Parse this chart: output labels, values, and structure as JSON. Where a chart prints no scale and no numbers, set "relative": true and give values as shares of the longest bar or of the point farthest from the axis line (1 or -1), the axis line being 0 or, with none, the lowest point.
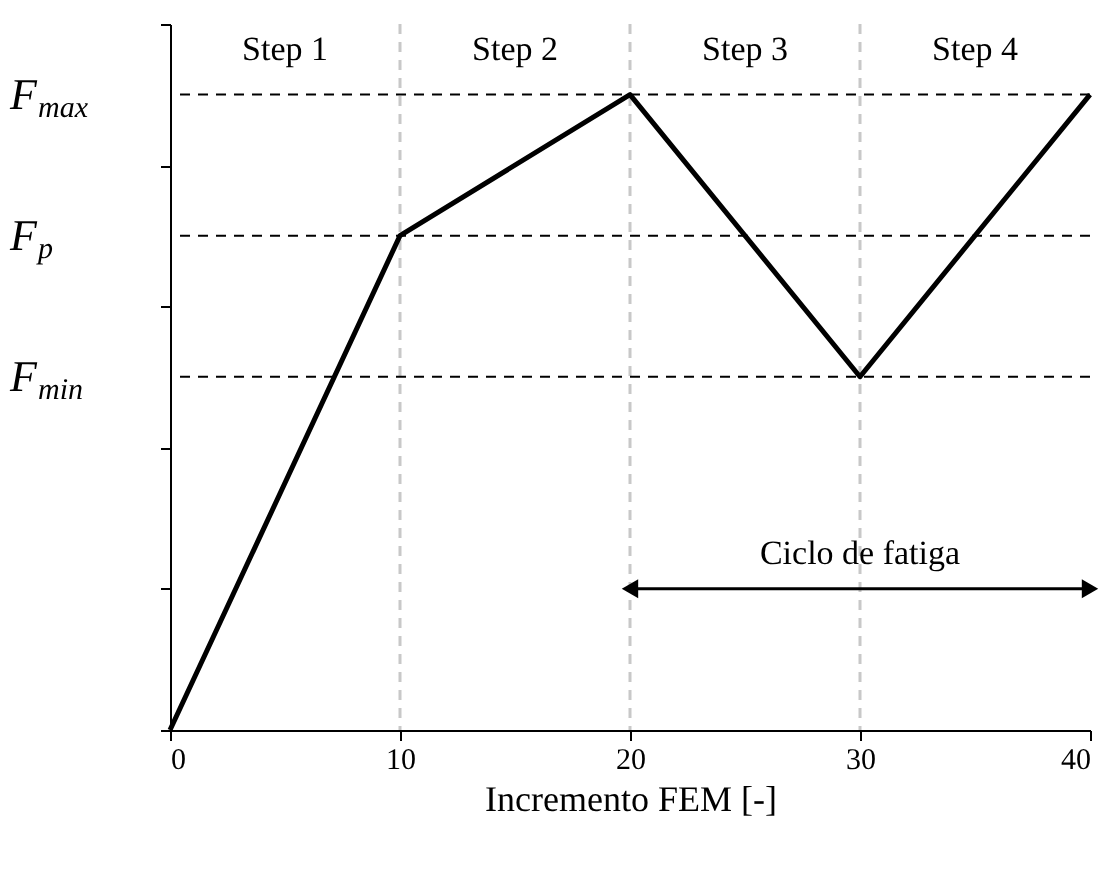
{
  "chart_data": {
    "type": "line",
    "relative": true,
    "xlabel": "Incremento FEM [-]",
    "x": [
      0,
      10,
      20,
      30,
      40
    ],
    "xlim": [
      0,
      40
    ],
    "xticks": [
      0,
      10,
      20,
      30,
      40
    ],
    "series": [
      {
        "color": "#000000",
        "values": [
          0,
          0.778,
          1,
          0.556,
          1
        ]
      }
    ],
    "ref_lines": [
      {
        "axis": "y",
        "value": 1,
        "label": "F$_{max}$",
        "color": "#000000",
        "line_style": "dashed"
      },
      {
        "axis": "y",
        "value": 0.778,
        "label": "F$_{p}$",
        "color": "#000000",
        "line_style": "dashed"
      },
      {
        "axis": "y",
        "value": 0.556,
        "label": "F$_{min}$",
        "color": "#000000",
        "line_style": "dashed"
      },
      {
        "axis": "x",
        "value": 10,
        "color": "#c8c8c8",
        "line_style": "dashed"
      },
      {
        "axis": "x",
        "value": 20,
        "color": "#c8c8c8",
        "line_style": "dashed"
      },
      {
        "axis": "x",
        "value": 30,
        "color": "#c8c8c8",
        "line_style": "dashed"
      }
    ],
    "annotations": [
      "Step 1",
      "Step 2",
      "Step 3",
      "Step 4",
      "Ciclo de fatiga"
    ],
    "grid": false,
    "marker": "none",
    "line_style": "solid"
  }
}
